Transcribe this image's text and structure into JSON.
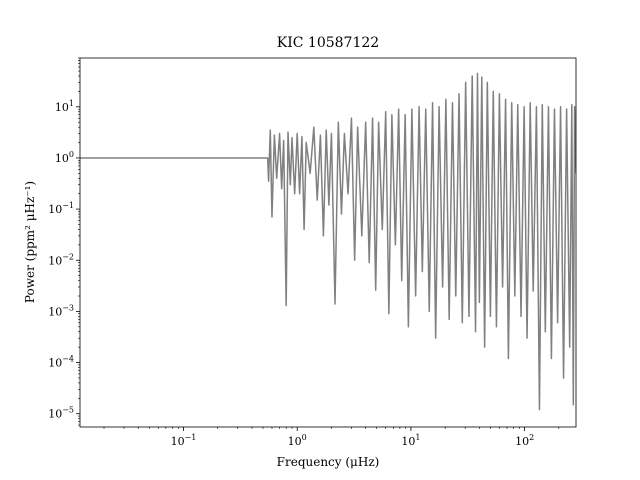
{
  "chart_data": {
    "type": "line",
    "title": "KIC 10587122",
    "xlabel": "Frequency (μHz)",
    "ylabel": "Power (ppm² μHz⁻¹)",
    "xscale": "log",
    "yscale": "log",
    "xlim": [
      0.0123,
      283
    ],
    "ylim": [
      5.5e-06,
      90
    ],
    "x_ticks": [
      0.1,
      1,
      10,
      100
    ],
    "x_tick_labels": [
      {
        "base": "10",
        "exp": "−1"
      },
      {
        "base": "10",
        "exp": "0"
      },
      {
        "base": "10",
        "exp": "1"
      },
      {
        "base": "10",
        "exp": "2"
      }
    ],
    "y_ticks": [
      1e-05,
      0.0001,
      0.001,
      0.01,
      0.1,
      1,
      10
    ],
    "y_tick_labels": [
      {
        "base": "10",
        "exp": "−5"
      },
      {
        "base": "10",
        "exp": "−4"
      },
      {
        "base": "10",
        "exp": "−3"
      },
      {
        "base": "10",
        "exp": "−2"
      },
      {
        "base": "10",
        "exp": "−1"
      },
      {
        "base": "10",
        "exp": "0"
      },
      {
        "base": "10",
        "exp": "1"
      }
    ],
    "grid": false,
    "legend": "none",
    "series": [
      {
        "color": "#808080",
        "points": [
          [
            0.0123,
            1.0
          ],
          [
            0.55,
            1.0
          ],
          [
            0.56,
            0.35
          ],
          [
            0.58,
            3.5
          ],
          [
            0.6,
            0.07
          ],
          [
            0.63,
            2.8
          ],
          [
            0.66,
            0.4
          ],
          [
            0.7,
            3.0
          ],
          [
            0.73,
            0.25
          ],
          [
            0.76,
            2.2
          ],
          [
            0.8,
            0.0013
          ],
          [
            0.83,
            3.2
          ],
          [
            0.87,
            0.3
          ],
          [
            0.9,
            2.5
          ],
          [
            0.95,
            0.2
          ],
          [
            1.0,
            3.0
          ],
          [
            1.05,
            0.2
          ],
          [
            1.1,
            2.6
          ],
          [
            1.15,
            0.04
          ],
          [
            1.2,
            2.0
          ],
          [
            1.3,
            0.5
          ],
          [
            1.4,
            4.0
          ],
          [
            1.5,
            0.15
          ],
          [
            1.6,
            2.8
          ],
          [
            1.7,
            0.03
          ],
          [
            1.8,
            3.5
          ],
          [
            1.9,
            0.12
          ],
          [
            2.0,
            3.0
          ],
          [
            2.15,
            0.0014
          ],
          [
            2.3,
            5.0
          ],
          [
            2.45,
            0.08
          ],
          [
            2.6,
            3.0
          ],
          [
            2.8,
            0.2
          ],
          [
            3.0,
            6.0
          ],
          [
            3.2,
            0.01
          ],
          [
            3.4,
            4.0
          ],
          [
            3.7,
            0.03
          ],
          [
            4.0,
            5.0
          ],
          [
            4.3,
            0.009
          ],
          [
            4.6,
            6.0
          ],
          [
            4.9,
            0.0026
          ],
          [
            5.2,
            5.0
          ],
          [
            5.6,
            0.04
          ],
          [
            6.0,
            8.0
          ],
          [
            6.4,
            0.0009
          ],
          [
            6.8,
            7.0
          ],
          [
            7.3,
            0.02
          ],
          [
            7.8,
            9.0
          ],
          [
            8.3,
            0.004
          ],
          [
            8.9,
            7.0
          ],
          [
            9.5,
            0.0005
          ],
          [
            10.2,
            9.0
          ],
          [
            11.0,
            0.002
          ],
          [
            11.8,
            10.0
          ],
          [
            12.6,
            0.006
          ],
          [
            13.5,
            9.0
          ],
          [
            14.5,
            0.001
          ],
          [
            15.5,
            12.0
          ],
          [
            16.5,
            0.0003
          ],
          [
            17.7,
            10.0
          ],
          [
            19.0,
            0.003
          ],
          [
            20.3,
            14.0
          ],
          [
            21.7,
            0.0007
          ],
          [
            23.2,
            12.0
          ],
          [
            24.8,
            0.002
          ],
          [
            26.5,
            18.0
          ],
          [
            28.3,
            0.0006
          ],
          [
            30.3,
            30.0
          ],
          [
            32.4,
            0.0008
          ],
          [
            34.6,
            40.0
          ],
          [
            37.0,
            0.0004
          ],
          [
            38.5,
            45.0
          ],
          [
            40.0,
            0.0015
          ],
          [
            42.0,
            38.0
          ],
          [
            44.5,
            0.0002
          ],
          [
            47.0,
            30.0
          ],
          [
            50.0,
            0.0008
          ],
          [
            53.0,
            20.0
          ],
          [
            56.5,
            0.0005
          ],
          [
            60.0,
            18.0
          ],
          [
            64.0,
            0.003
          ],
          [
            68.0,
            14.0
          ],
          [
            72.0,
            0.00012
          ],
          [
            77.0,
            12.0
          ],
          [
            82.0,
            0.002
          ],
          [
            87.0,
            11.0
          ],
          [
            93.0,
            0.0008
          ],
          [
            99.0,
            10.0
          ],
          [
            105.0,
            0.0003
          ],
          [
            112.0,
            12.0
          ],
          [
            119.0,
            0.0025
          ],
          [
            127.0,
            10.0
          ],
          [
            135.0,
            1.2e-05
          ],
          [
            143.0,
            11.0
          ],
          [
            152.0,
            0.0004
          ],
          [
            162.0,
            10.0
          ],
          [
            172.0,
            0.00012
          ],
          [
            183.0,
            9.0
          ],
          [
            195.0,
            0.0006
          ],
          [
            207.0,
            10.0
          ],
          [
            220.0,
            5e-05
          ],
          [
            234.0,
            9.0
          ],
          [
            249.0,
            0.0002
          ],
          [
            260.0,
            11.0
          ],
          [
            268.0,
            1.5e-05
          ],
          [
            275.0,
            10.0
          ],
          [
            283.0,
            0.5
          ]
        ]
      }
    ]
  }
}
